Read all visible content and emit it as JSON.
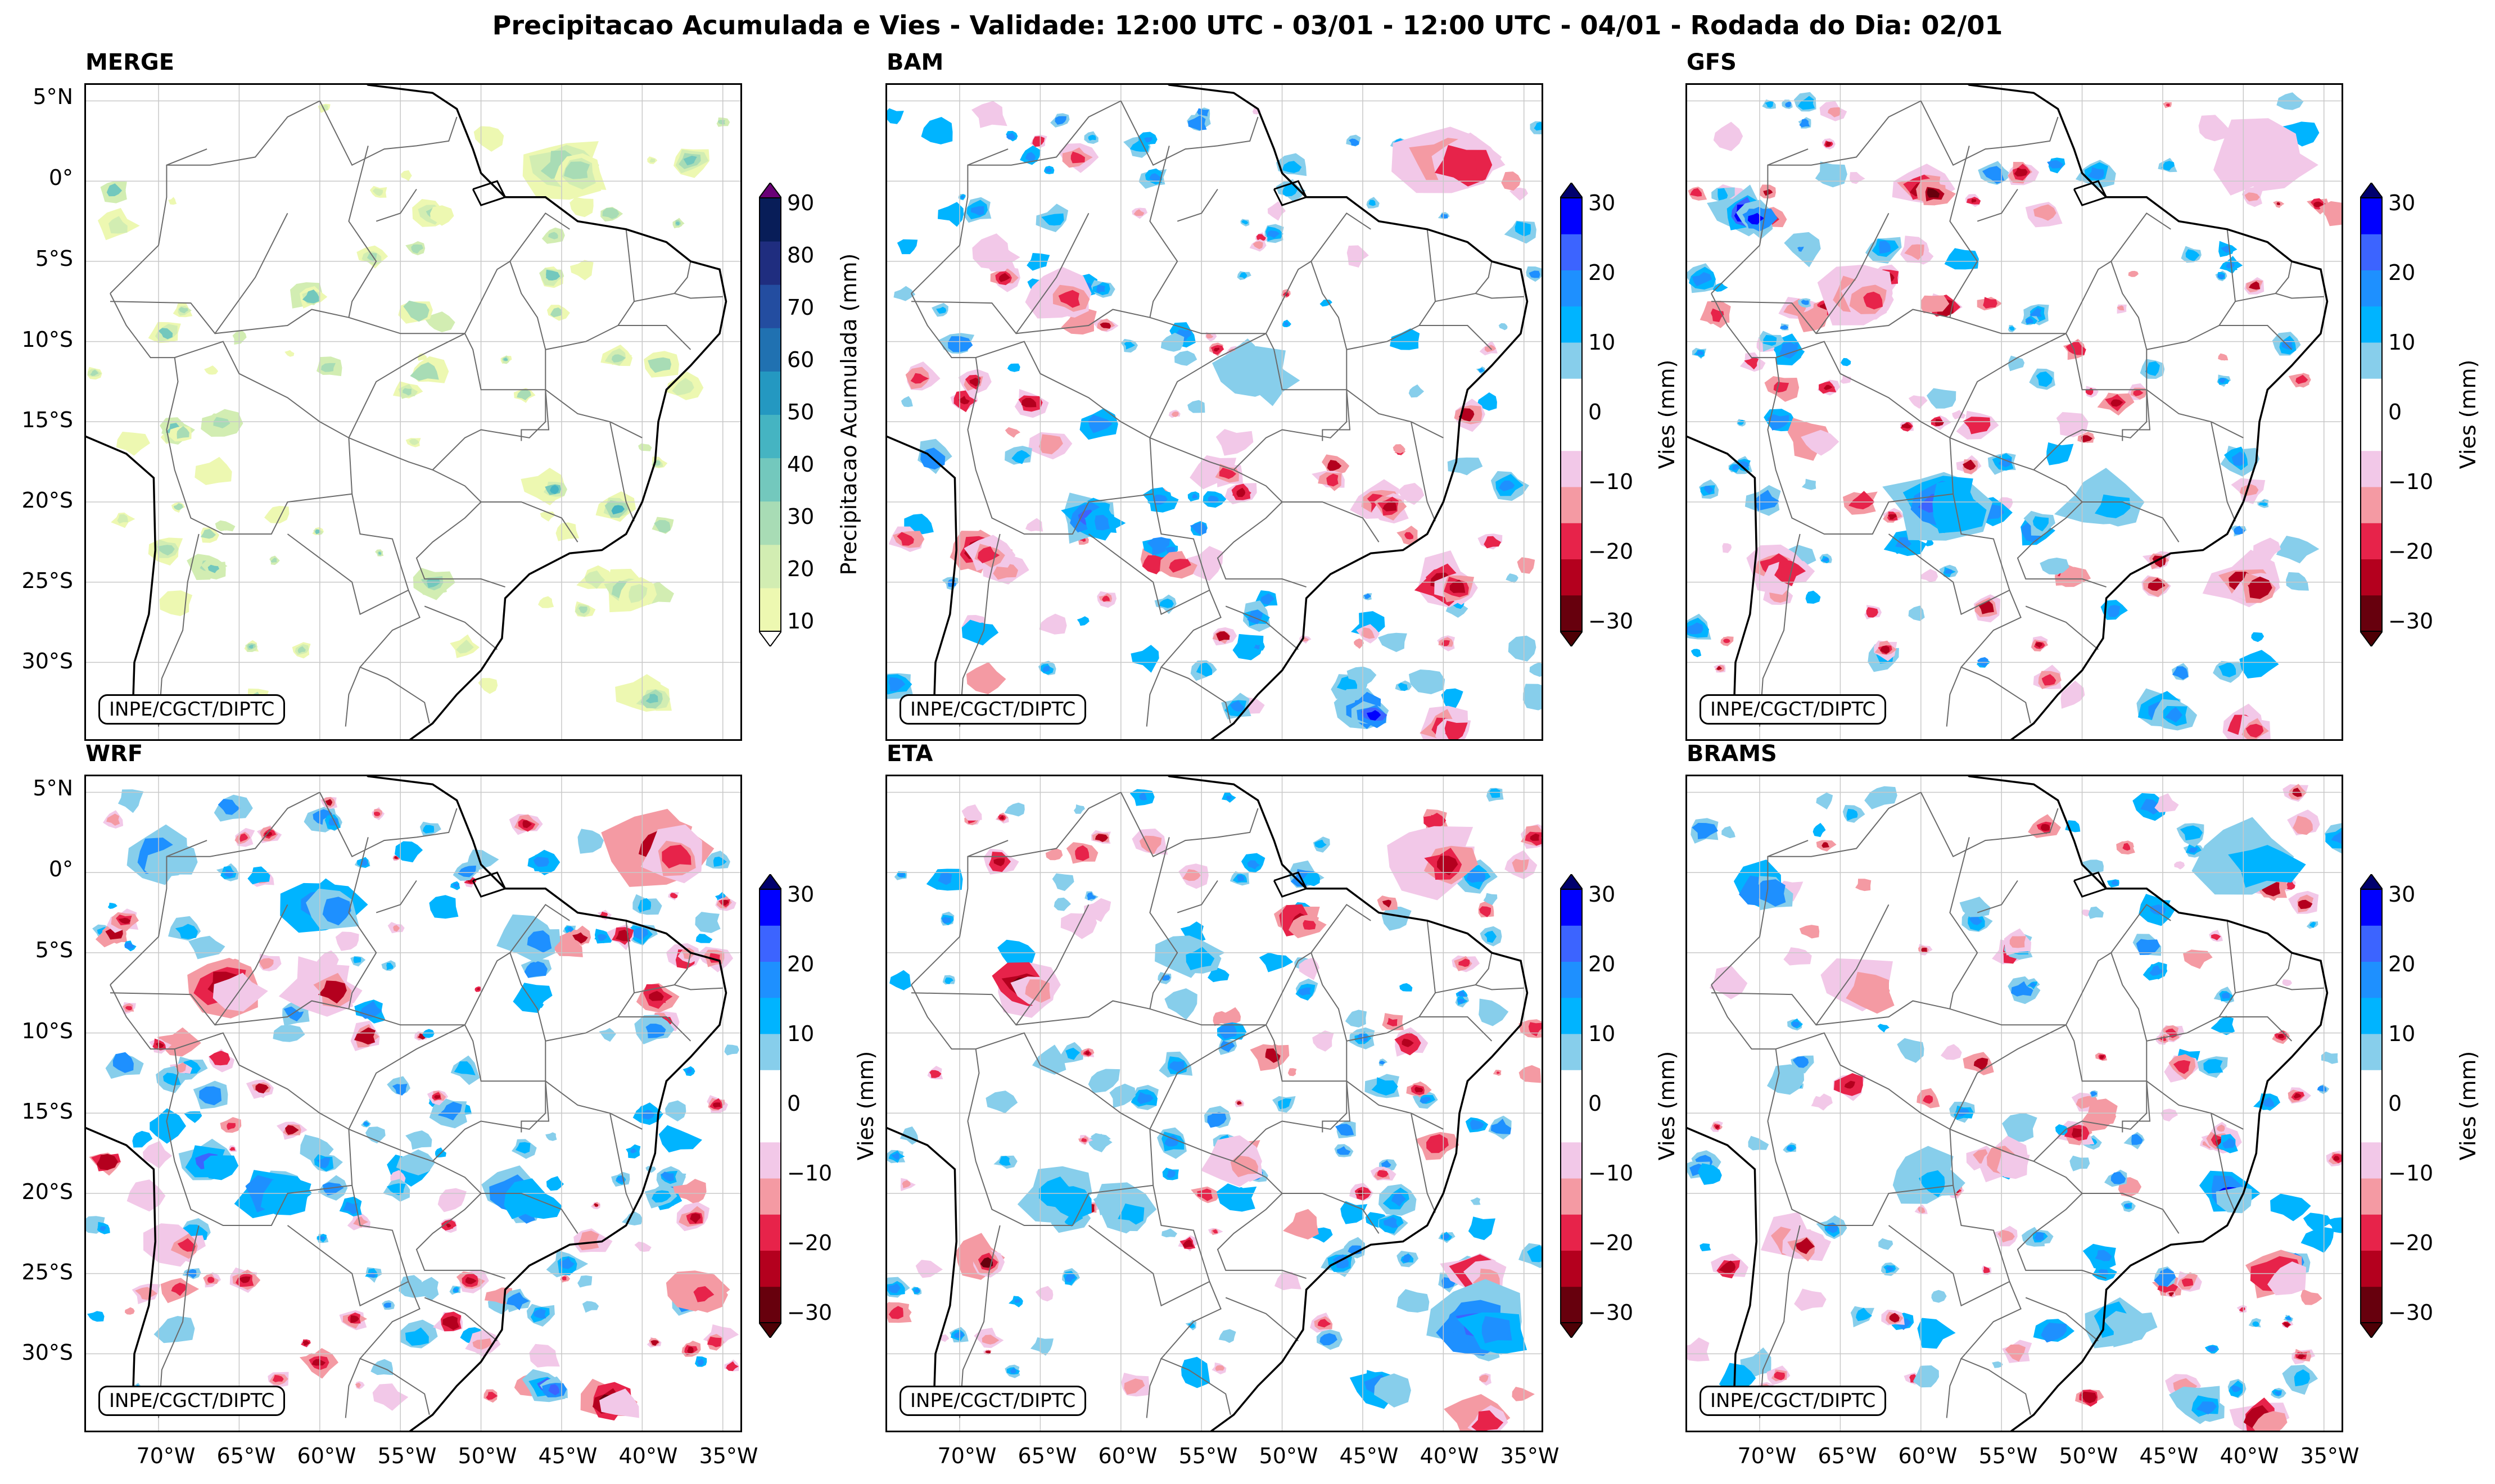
{
  "title": "Precipitacao Acumulada e Vies - Validade: 12:00 UTC - 03/01 - 12:00 UTC - 04/01 - Rodada do Dia: 02/01",
  "credit": "INPE/CGCT/DIPTC",
  "lat_ticks": [
    "5°N",
    "0°",
    "5°S",
    "10°S",
    "15°S",
    "20°S",
    "25°S",
    "30°S"
  ],
  "lon_ticks": [
    "70°W",
    "65°W",
    "60°W",
    "55°W",
    "50°W",
    "45°W",
    "40°W",
    "35°W"
  ],
  "panels": [
    {
      "name": "MERGE",
      "kind": "precip"
    },
    {
      "name": "BAM",
      "kind": "bias"
    },
    {
      "name": "GFS",
      "kind": "bias"
    },
    {
      "name": "WRF",
      "kind": "bias"
    },
    {
      "name": "ETA",
      "kind": "bias"
    },
    {
      "name": "BRAMS",
      "kind": "bias"
    }
  ],
  "colorbars": {
    "precip": {
      "label": "Precipitacao Acumulada (mm)",
      "ticks": [
        "10",
        "20",
        "30",
        "40",
        "50",
        "60",
        "70",
        "80",
        "90"
      ],
      "colors": [
        "#edf8b1",
        "#d2edb2",
        "#a8dcb5",
        "#73c8bd",
        "#45b4c2",
        "#2498c1",
        "#2071b1",
        "#234da0",
        "#1f2d7f",
        "#081d58"
      ],
      "over_color": "#6a0177",
      "under_color": "#ffffff"
    },
    "bias": {
      "label": "Vies (mm)",
      "ticks": [
        "−30",
        "−20",
        "−10",
        "0",
        "10",
        "20",
        "30"
      ],
      "colors": [
        "#67000d",
        "#b4001e",
        "#e7234a",
        "#f49aa3",
        "#f2c8e8",
        "#ffffff",
        "#ffffff",
        "#87ceeb",
        "#00b4ff",
        "#1e90ff",
        "#3c64ff",
        "#0000ff"
      ],
      "under_color": "#4d0005",
      "over_color": "#00006e"
    }
  },
  "map_colors": {
    "coast": "#000000",
    "borders": "#6b6b6b",
    "grid": "#c8c8c8"
  }
}
